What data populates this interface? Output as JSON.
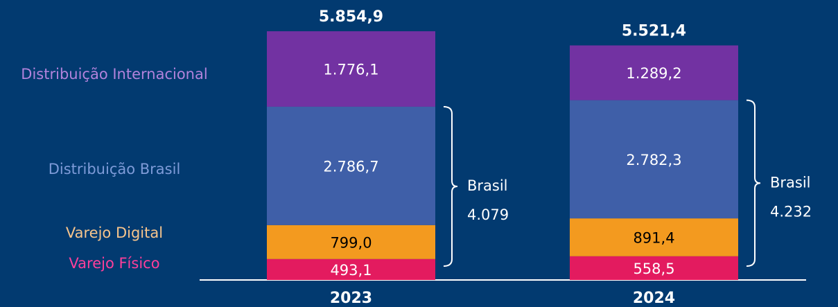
{
  "chart_data": {
    "type": "stacked_bar",
    "categories": [
      "2023",
      "2024"
    ],
    "series": [
      {
        "name": "Varejo Físico",
        "color": "#e31b5f",
        "label_color": "#ff3f9b",
        "text_color": "#ffffff",
        "values": [
          493.1,
          558.5
        ],
        "value_labels": [
          "493,1",
          "558,5"
        ]
      },
      {
        "name": "Varejo Digital",
        "color": "#f39a1f",
        "label_color": "#f8c58c",
        "text_color": "#000000",
        "values": [
          799.0,
          891.4
        ],
        "value_labels": [
          "799,0",
          "891,4"
        ]
      },
      {
        "name": "Distribuição Brasil",
        "color": "#3f5fa8",
        "label_color": "#7e9bd8",
        "text_color": "#ffffff",
        "values": [
          2786.7,
          2782.3
        ],
        "value_labels": [
          "2.786,7",
          "2.782,3"
        ]
      },
      {
        "name": "Distribuição Internacional",
        "color": "#7232a2",
        "label_color": "#b283dc",
        "text_color": "#ffffff",
        "values": [
          1776.1,
          1289.2
        ],
        "value_labels": [
          "1.776,1",
          "1.289,2"
        ]
      }
    ],
    "totals": [
      5854.9,
      5521.4
    ],
    "total_labels": [
      "5.854,9",
      "5.521,4"
    ],
    "brackets": [
      {
        "label": "Brasil",
        "value": 4079,
        "value_label": "4.079"
      },
      {
        "label": "Brasil",
        "value": 4232,
        "value_label": "4.232"
      }
    ]
  }
}
